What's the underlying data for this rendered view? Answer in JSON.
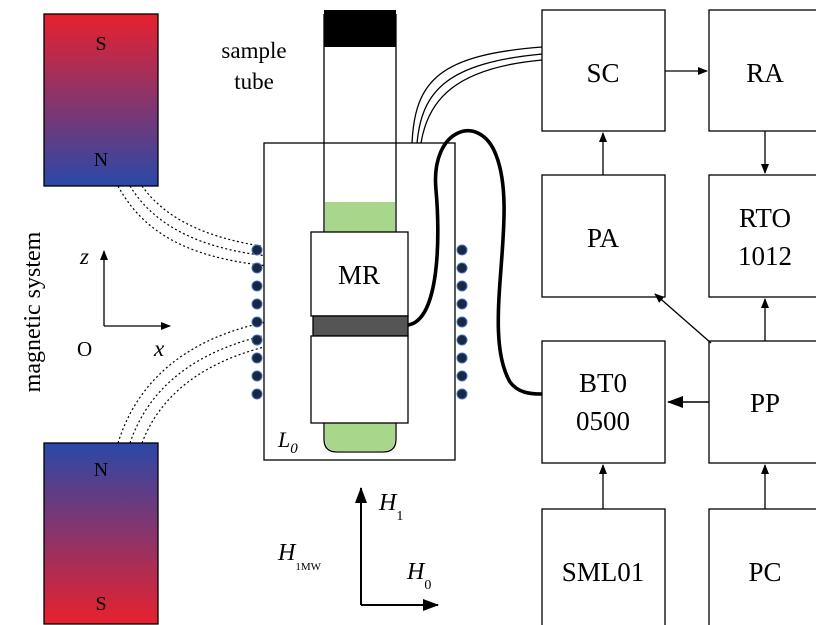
{
  "magnets": {
    "top": {
      "upper": "S",
      "lower": "N"
    },
    "bottom": {
      "upper": "N",
      "lower": "S"
    },
    "label": "magnetic system",
    "color_south": "#e8212e",
    "color_north": "#2a48a8"
  },
  "axes": {
    "z": "z",
    "x": "x",
    "origin": "O"
  },
  "sample_tube": {
    "line1": "sample",
    "line2": "tube",
    "cap_color": "#000000",
    "liquid_color": "#a8d68a"
  },
  "resonator": {
    "label": "MR",
    "coil_label": "L",
    "coil_sub": "0",
    "ring_color": "#555555"
  },
  "fields": {
    "h1": "H",
    "h1_sub": "1",
    "h1mw": "H",
    "h1mw_sub": "1MW",
    "h0": "H",
    "h0_sub": "0"
  },
  "blocks": {
    "sc": "SC",
    "ra": "RA",
    "pa": "PA",
    "rto_1": "RTO",
    "rto_2": "1012",
    "bt_1": "BT0",
    "bt_2": "0500",
    "pp": "PP",
    "sml": "SML01",
    "pc": "PC"
  }
}
